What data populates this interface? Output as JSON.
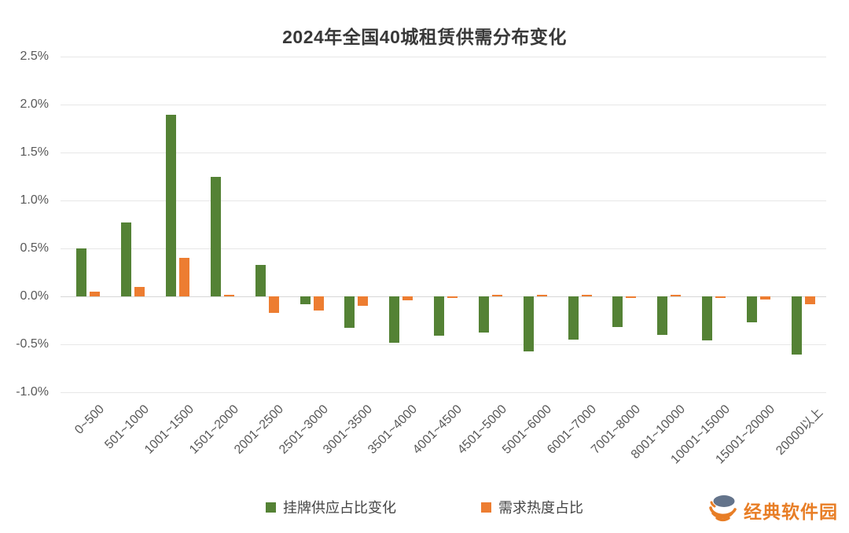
{
  "title": "2024年全国40城租赁供需分布变化",
  "watermark": {
    "text": "经典软件园",
    "color": "#e87e26",
    "globe_top_color": "#64748b",
    "globe_arc_color": "#e87e26"
  },
  "chart_data": {
    "type": "bar",
    "title": "2024年全国40城租赁供需分布变化",
    "categories": [
      "0~500",
      "501~1000",
      "1001~1500",
      "1501~2000",
      "2001~2500",
      "2501~3000",
      "3001~3500",
      "3501~4000",
      "4001~4500",
      "4501~5000",
      "5001~6000",
      "6001~7000",
      "7001~8000",
      "8001~10000",
      "10001~15000",
      "15001~20000",
      "20000以上"
    ],
    "series": [
      {
        "name": "挂牌供应占比变化",
        "color": "#548235",
        "values": [
          0.5,
          0.77,
          1.89,
          1.25,
          0.33,
          -0.08,
          -0.33,
          -0.48,
          -0.41,
          -0.38,
          -0.57,
          -0.45,
          -0.32,
          -0.4,
          -0.46,
          -0.27,
          -0.61
        ]
      },
      {
        "name": "需求热度占比",
        "color": "#ED7D31",
        "values": [
          0.05,
          0.1,
          0.4,
          0.02,
          -0.17,
          -0.15,
          -0.1,
          -0.04,
          -0.02,
          0.02,
          0.02,
          0.02,
          -0.01,
          0.02,
          -0.02,
          -0.03,
          -0.08
        ]
      }
    ],
    "xlabel": "",
    "ylabel": "",
    "ylim": [
      -1.0,
      2.5
    ],
    "y_tick_values": [
      2.5,
      2.0,
      1.5,
      1.0,
      0.5,
      0.0,
      -0.5,
      -1.0
    ],
    "y_tick_labels": [
      "2.5%",
      "2.0%",
      "1.5%",
      "1.0%",
      "0.5%",
      "0.0%",
      "-0.5%",
      "-1.0%"
    ],
    "grid": "horizontal",
    "legend_position": "bottom"
  }
}
